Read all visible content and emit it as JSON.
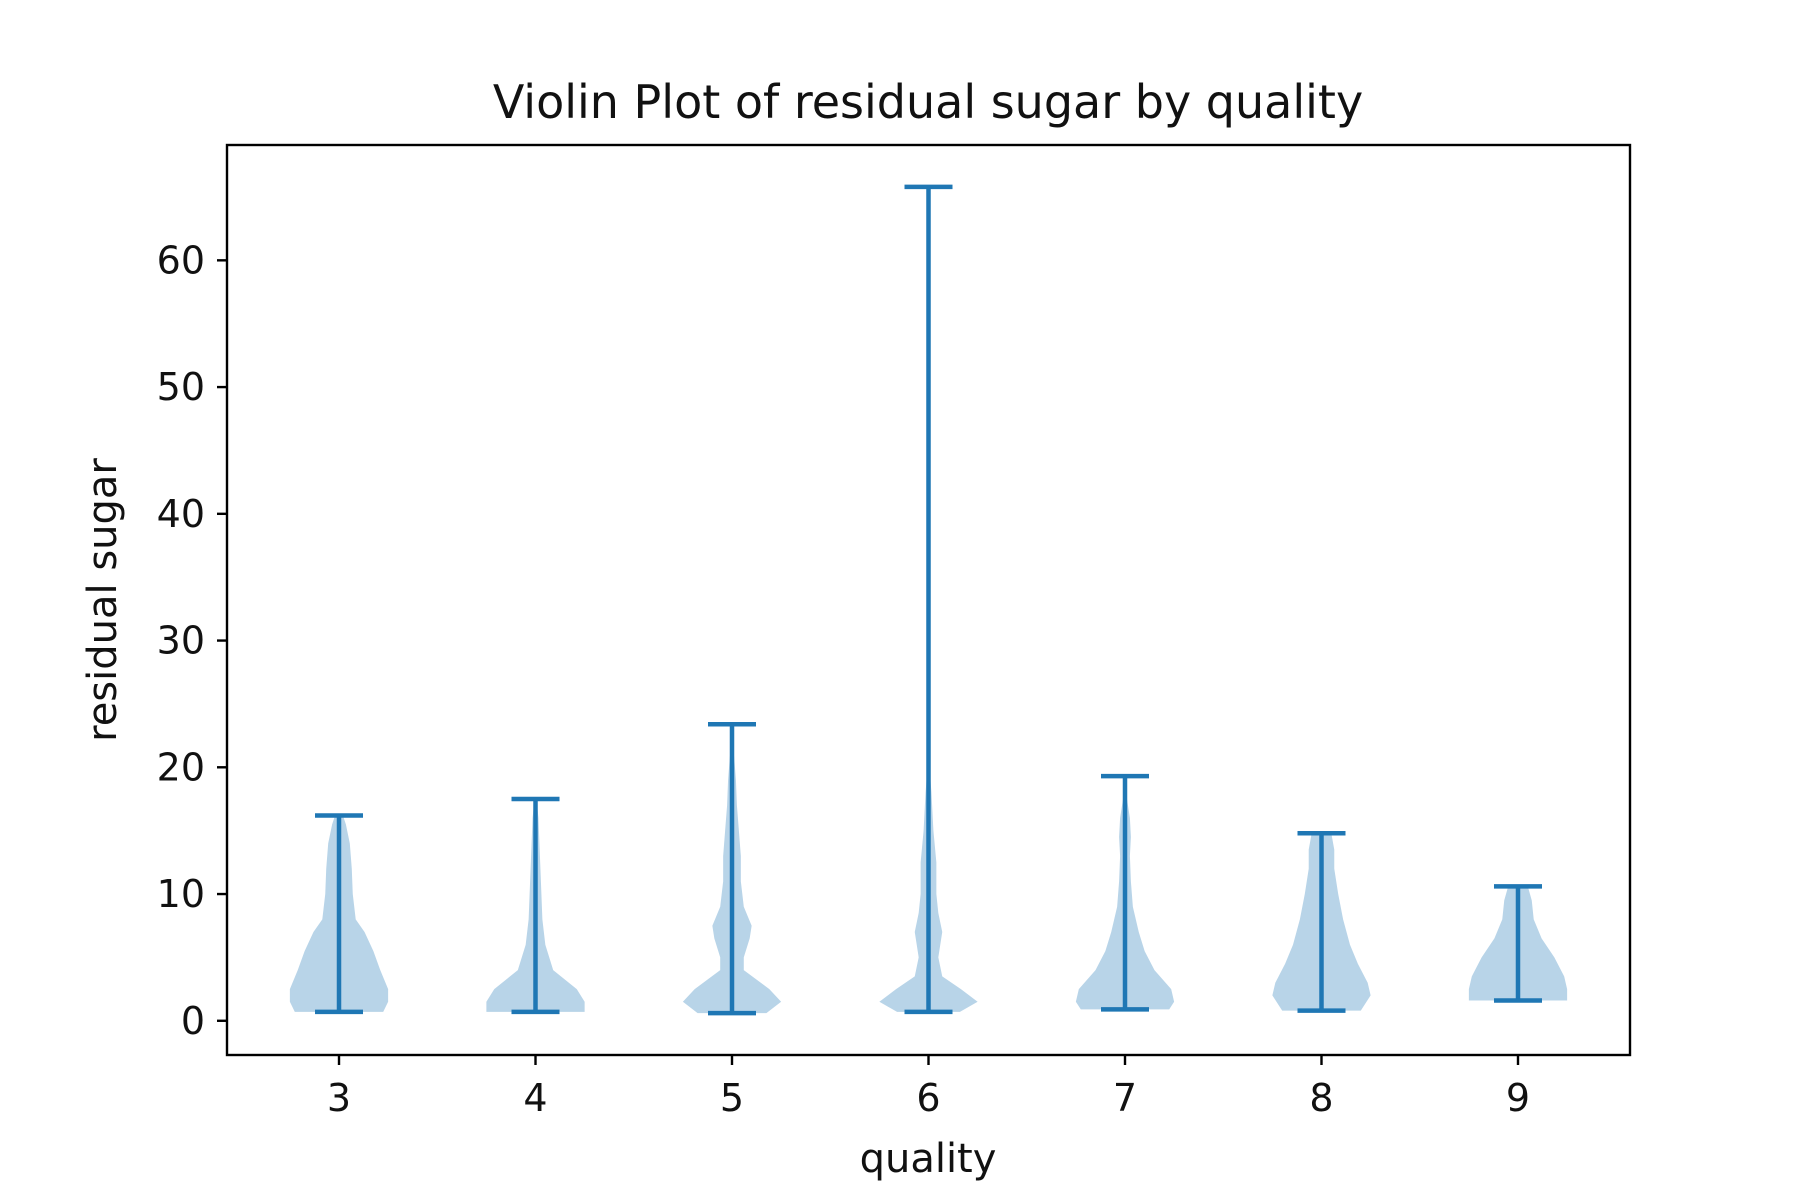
{
  "chart_data": {
    "type": "violin",
    "title": "Violin Plot of residual sugar by quality",
    "xlabel": "quality",
    "ylabel": "residual sugar",
    "categories": [
      "3",
      "4",
      "5",
      "6",
      "7",
      "8",
      "9"
    ],
    "xlim": [
      2.43,
      9.57
    ],
    "ylim": [
      -2.7,
      69.1
    ],
    "yticks": [
      0,
      10,
      20,
      30,
      40,
      50,
      60
    ],
    "grid": false,
    "legend": "none",
    "colors": {
      "body": "#b8d4e8",
      "lines": "#1f77b4",
      "axis": "#000000",
      "text": "#111111"
    },
    "series": [
      {
        "category": "3",
        "min": 0.7,
        "max": 16.2,
        "density": [
          [
            0.7,
            0.45
          ],
          [
            1.5,
            0.5
          ],
          [
            2.5,
            0.5
          ],
          [
            4.0,
            0.42
          ],
          [
            5.5,
            0.35
          ],
          [
            7.0,
            0.26
          ],
          [
            8.0,
            0.17
          ],
          [
            10.0,
            0.14
          ],
          [
            12.0,
            0.13
          ],
          [
            14.0,
            0.11
          ],
          [
            15.5,
            0.07
          ],
          [
            16.2,
            0.04
          ]
        ]
      },
      {
        "category": "4",
        "min": 0.7,
        "max": 17.5,
        "density": [
          [
            0.7,
            0.5
          ],
          [
            1.5,
            0.5
          ],
          [
            2.5,
            0.42
          ],
          [
            4.0,
            0.18
          ],
          [
            6.0,
            0.1
          ],
          [
            8.0,
            0.07
          ],
          [
            10.0,
            0.06
          ],
          [
            12.0,
            0.05
          ],
          [
            14.0,
            0.04
          ],
          [
            16.0,
            0.03
          ],
          [
            17.5,
            0.01
          ]
        ]
      },
      {
        "category": "5",
        "min": 0.6,
        "max": 23.4,
        "density": [
          [
            0.6,
            0.35
          ],
          [
            1.5,
            0.5
          ],
          [
            2.5,
            0.38
          ],
          [
            4.0,
            0.12
          ],
          [
            5.0,
            0.12
          ],
          [
            6.5,
            0.18
          ],
          [
            7.5,
            0.2
          ],
          [
            9.0,
            0.12
          ],
          [
            11.0,
            0.09
          ],
          [
            13.0,
            0.09
          ],
          [
            15.0,
            0.07
          ],
          [
            17.0,
            0.05
          ],
          [
            19.0,
            0.04
          ],
          [
            21.0,
            0.02
          ],
          [
            23.4,
            0.0
          ]
        ]
      },
      {
        "category": "6",
        "min": 0.7,
        "max": 65.8,
        "density": [
          [
            0.7,
            0.32
          ],
          [
            1.5,
            0.5
          ],
          [
            2.5,
            0.33
          ],
          [
            3.5,
            0.14
          ],
          [
            5.0,
            0.1
          ],
          [
            7.0,
            0.14
          ],
          [
            8.5,
            0.1
          ],
          [
            10.0,
            0.08
          ],
          [
            12.5,
            0.08
          ],
          [
            15.0,
            0.05
          ],
          [
            18.0,
            0.03
          ],
          [
            20.0,
            0.01
          ],
          [
            25.0,
            0.0
          ],
          [
            65.8,
            0.0
          ]
        ]
      },
      {
        "category": "7",
        "min": 0.9,
        "max": 19.3,
        "density": [
          [
            0.9,
            0.45
          ],
          [
            1.5,
            0.5
          ],
          [
            2.5,
            0.47
          ],
          [
            4.0,
            0.3
          ],
          [
            5.5,
            0.2
          ],
          [
            7.0,
            0.14
          ],
          [
            9.0,
            0.08
          ],
          [
            11.0,
            0.06
          ],
          [
            13.0,
            0.05
          ],
          [
            14.5,
            0.06
          ],
          [
            16.0,
            0.05
          ],
          [
            17.5,
            0.02
          ],
          [
            19.3,
            0.0
          ]
        ]
      },
      {
        "category": "8",
        "min": 0.8,
        "max": 14.8,
        "density": [
          [
            0.8,
            0.4
          ],
          [
            2.0,
            0.5
          ],
          [
            3.0,
            0.47
          ],
          [
            4.5,
            0.37
          ],
          [
            6.0,
            0.29
          ],
          [
            8.0,
            0.22
          ],
          [
            10.0,
            0.17
          ],
          [
            12.0,
            0.13
          ],
          [
            13.5,
            0.13
          ],
          [
            14.8,
            0.1
          ]
        ]
      },
      {
        "category": "9",
        "min": 1.6,
        "max": 10.6,
        "density": [
          [
            1.6,
            0.5
          ],
          [
            2.5,
            0.5
          ],
          [
            3.5,
            0.47
          ],
          [
            5.0,
            0.37
          ],
          [
            6.5,
            0.24
          ],
          [
            8.0,
            0.16
          ],
          [
            9.5,
            0.14
          ],
          [
            10.6,
            0.1
          ]
        ]
      }
    ]
  }
}
